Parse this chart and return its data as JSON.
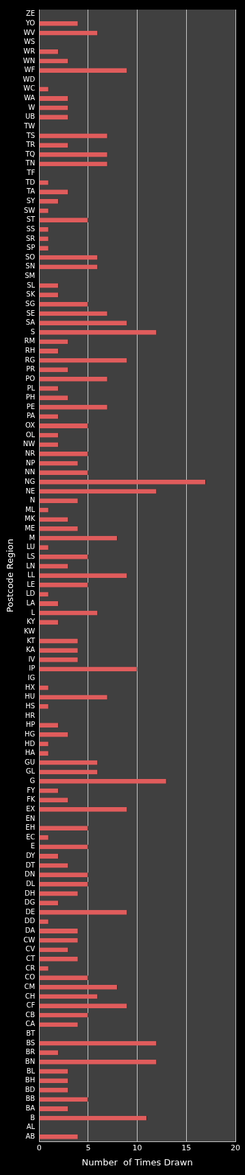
{
  "chart_data": {
    "type": "bar",
    "orientation": "horizontal",
    "xlabel": "Number  of Times Drawn",
    "ylabel": "Postcode Region",
    "color": "#e05c5c",
    "xlim": [
      0,
      20
    ],
    "xticks": [
      0,
      5,
      10,
      15,
      20
    ],
    "grid": "x",
    "legend": false,
    "categories": [
      "ZE",
      "YO",
      "WV",
      "WS",
      "WR",
      "WN",
      "WF",
      "WD",
      "WC",
      "WA",
      "W",
      "UB",
      "TW",
      "TS",
      "TR",
      "TQ",
      "TN",
      "TF",
      "TD",
      "TA",
      "SY",
      "SW",
      "ST",
      "SS",
      "SR",
      "SP",
      "SO",
      "SN",
      "SM",
      "SL",
      "SK",
      "SG",
      "SE",
      "SA",
      "S",
      "RM",
      "RH",
      "RG",
      "PR",
      "PO",
      "PL",
      "PH",
      "PE",
      "PA",
      "OX",
      "OL",
      "NW",
      "NR",
      "NP",
      "NN",
      "NG",
      "NE",
      "N",
      "ML",
      "MK",
      "ME",
      "M",
      "LU",
      "LS",
      "LN",
      "LL",
      "LE",
      "LD",
      "LA",
      "L",
      "KY",
      "KW",
      "KT",
      "KA",
      "IV",
      "IP",
      "IG",
      "HX",
      "HU",
      "HS",
      "HR",
      "HP",
      "HG",
      "HD",
      "HA",
      "GU",
      "GL",
      "G",
      "FY",
      "FK",
      "EX",
      "EN",
      "EH",
      "EC",
      "E",
      "DY",
      "DT",
      "DN",
      "DL",
      "DH",
      "DG",
      "DE",
      "DD",
      "DA",
      "CW",
      "CV",
      "CT",
      "CR",
      "CO",
      "CM",
      "CH",
      "CF",
      "CB",
      "CA",
      "BT",
      "BS",
      "BR",
      "BN",
      "BL",
      "BH",
      "BD",
      "BB",
      "BA",
      "B",
      "AL",
      "AB"
    ],
    "values": [
      0,
      4,
      6,
      0,
      2,
      3,
      9,
      0,
      1,
      3,
      3,
      3,
      0,
      7,
      3,
      7,
      7,
      0,
      1,
      3,
      2,
      1,
      5,
      1,
      1,
      1,
      6,
      6,
      0,
      2,
      2,
      5,
      7,
      9,
      12,
      3,
      2,
      9,
      3,
      7,
      2,
      3,
      7,
      2,
      5,
      2,
      2,
      5,
      4,
      5,
      17,
      12,
      4,
      1,
      3,
      4,
      8,
      1,
      5,
      3,
      9,
      5,
      1,
      2,
      6,
      2,
      0,
      4,
      4,
      4,
      10,
      0,
      1,
      7,
      1,
      0,
      2,
      3,
      1,
      1,
      6,
      6,
      13,
      2,
      3,
      9,
      0,
      5,
      1,
      5,
      2,
      3,
      5,
      5,
      4,
      2,
      9,
      1,
      4,
      4,
      3,
      4,
      1,
      5,
      8,
      6,
      9,
      5,
      4,
      0,
      12,
      2,
      12,
      3,
      3,
      3,
      5,
      3,
      11,
      0,
      4
    ]
  }
}
